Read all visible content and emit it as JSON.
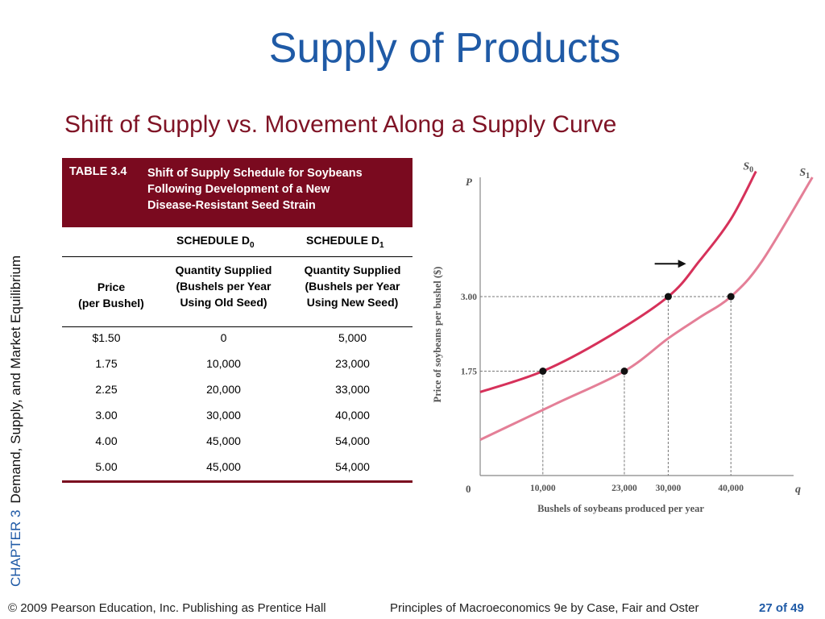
{
  "slide": {
    "title": "Supply of Products",
    "subtitle": "Shift of Supply vs. Movement Along a Supply Curve",
    "chapter_label": "CHAPTER 3",
    "chapter_name": "Demand, Supply, and Market Equilibrium"
  },
  "table": {
    "label": "TABLE 3.4",
    "caption_lines": [
      "Shift of Supply Schedule for Soybeans",
      "Following Development of a New",
      "Disease-Resistant Seed Strain"
    ],
    "schedule_d0": "SCHEDULE D",
    "schedule_d0_sub": "0",
    "schedule_d1": "SCHEDULE D",
    "schedule_d1_sub": "1",
    "col_price": [
      "Price",
      "(per Bushel)"
    ],
    "col_d0": [
      "Quantity Supplied",
      "(Bushels per Year",
      "Using Old Seed)"
    ],
    "col_d1": [
      "Quantity Supplied",
      "(Bushels per Year",
      "Using New Seed)"
    ],
    "rows": [
      {
        "price": "$1.50",
        "d0": "0",
        "d1": "5,000"
      },
      {
        "price": "1.75",
        "d0": "10,000",
        "d1": "23,000"
      },
      {
        "price": "2.25",
        "d0": "20,000",
        "d1": "33,000"
      },
      {
        "price": "3.00",
        "d0": "30,000",
        "d1": "40,000"
      },
      {
        "price": "4.00",
        "d0": "45,000",
        "d1": "54,000"
      },
      {
        "price": "5.00",
        "d0": "45,000",
        "d1": "54,000"
      }
    ]
  },
  "chart_data": {
    "type": "line",
    "y_axis_letter": "P",
    "x_axis_letter": "q",
    "origin_label": "0",
    "ylabel": "Price of soybeans per bushel ($)",
    "xlabel": "Bushels of soybeans produced per year",
    "xlim": [
      0,
      50000
    ],
    "ylim": [
      0,
      5.0
    ],
    "x_ticks": [
      {
        "value": 10000,
        "label": "10,000"
      },
      {
        "value": 23000,
        "label": "23,000"
      },
      {
        "value": 30000,
        "label": "30,000"
      },
      {
        "value": 40000,
        "label": "40,000"
      }
    ],
    "y_ticks": [
      {
        "value": 1.75,
        "label": "1.75"
      },
      {
        "value": 3.0,
        "label": "3.00"
      }
    ],
    "series": [
      {
        "name": "S",
        "sub": "0",
        "color": "#d6315a",
        "x": [
          0,
          10000,
          20000,
          30000,
          35000,
          40000,
          44000
        ],
        "y": [
          1.4,
          1.75,
          2.3,
          3.0,
          3.6,
          4.3,
          5.1
        ]
      },
      {
        "name": "S",
        "sub": "1",
        "color": "#e47f97",
        "x": [
          0,
          12000,
          23000,
          30000,
          35000,
          40000,
          45000,
          53000
        ],
        "y": [
          0.6,
          1.2,
          1.75,
          2.3,
          2.65,
          3.0,
          3.6,
          5.0
        ]
      }
    ],
    "points": [
      {
        "x": 10000,
        "y": 1.75
      },
      {
        "x": 23000,
        "y": 1.75
      },
      {
        "x": 30000,
        "y": 3.0
      },
      {
        "x": 40000,
        "y": 3.0
      }
    ],
    "shift_arrow": "right"
  },
  "footer": {
    "copyright": "© 2009 Pearson Education, Inc. Publishing as Prentice Hall",
    "book": "Principles of Macroeconomics 9e by Case, Fair and Oster",
    "page": "27 of 49"
  }
}
